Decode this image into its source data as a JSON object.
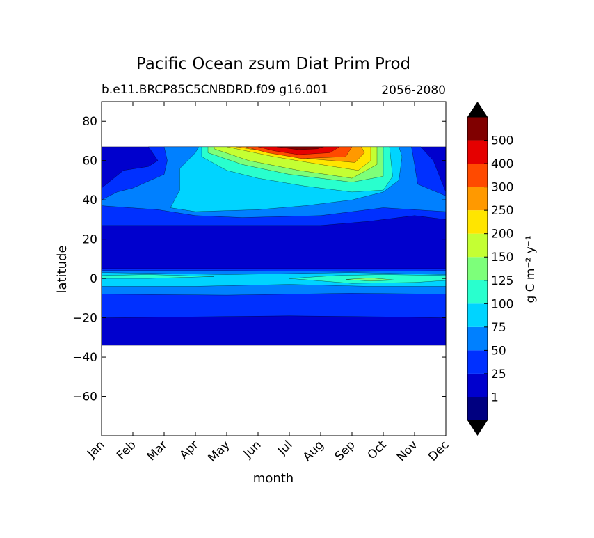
{
  "chart_data": {
    "type": "heatmap",
    "title": "Pacific Ocean zsum Diat Prim Prod",
    "subtitle_left": "b.e11.BRCP85C5CNBDRD.f09 g16.001",
    "subtitle_right": "2056-2080",
    "xlabel": "month",
    "ylabel": "latitude",
    "x_categories": [
      "Jan",
      "Feb",
      "Mar",
      "Apr",
      "May",
      "Jun",
      "Jul",
      "Aug",
      "Sep",
      "Oct",
      "Nov",
      "Dec"
    ],
    "ylim": [
      -80,
      90
    ],
    "y_ticks": [
      80,
      60,
      40,
      20,
      0,
      -20,
      -40,
      -60
    ],
    "y_tick_labels": [
      "80",
      "60",
      "40",
      "20",
      "0",
      "−20",
      "−40",
      "−60"
    ],
    "data_extent_lat": [
      -34,
      67
    ],
    "colorbar": {
      "label": "g C m⁻² y⁻¹",
      "levels": [
        1,
        25,
        50,
        75,
        100,
        125,
        150,
        200,
        250,
        300,
        400,
        500
      ],
      "level_labels": [
        "1",
        "25",
        "50",
        "75",
        "100",
        "125",
        "150",
        "200",
        "250",
        "300",
        "400",
        "500"
      ],
      "colors": [
        "#000080",
        "#0000cd",
        "#0030ff",
        "#0080ff",
        "#00d4ff",
        "#29ffce",
        "#7dff7a",
        "#c4ff33",
        "#ffe500",
        "#ff9900",
        "#ff4a00",
        "#e50000",
        "#800000"
      ],
      "extend": "both"
    },
    "contour_bands": [
      {
        "level": 1,
        "region": "-34 to 67 N, all months"
      },
      {
        "level": 25,
        "region": "broad bands -20 to 5 N and 25 to 60 N"
      },
      {
        "level": 50,
        "region": "-8 to 5 N and 30 to 60 N"
      },
      {
        "level": 75,
        "region": "equatorial tongue and 35 to 60 N spring-autumn"
      },
      {
        "level": 100,
        "region": "equator Jan-Apr and Aug-Dec; 42 to 66 N Apr-Oct"
      },
      {
        "level": 150,
        "region": "45 to 67 N May-Oct"
      },
      {
        "level": 250,
        "region": "55 to 67 N Jun-Sep"
      },
      {
        "level": 400,
        "region": "60 to 67 N Jun-Sep"
      },
      {
        "level": 500,
        "region": "64 to 67 N Jun-Aug"
      }
    ]
  }
}
